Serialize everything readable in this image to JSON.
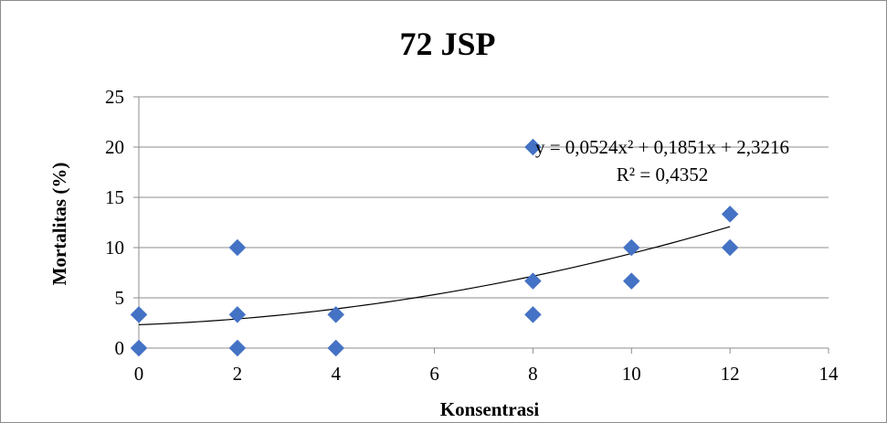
{
  "chart_data": {
    "type": "scatter",
    "title": "72 JSP",
    "xlabel": "Konsentrasi",
    "ylabel": "Mortalitas (%)",
    "xlim": [
      0,
      14
    ],
    "ylim": [
      0,
      25
    ],
    "x_ticks": [
      "0",
      "2",
      "4",
      "6",
      "8",
      "10",
      "12",
      "14"
    ],
    "y_ticks": [
      "0",
      "5",
      "10",
      "15",
      "20",
      "25"
    ],
    "grid": true,
    "marker_color": "#4472C4",
    "points": [
      {
        "x": 0,
        "y": 0
      },
      {
        "x": 0,
        "y": 3.33
      },
      {
        "x": 2,
        "y": 0
      },
      {
        "x": 2,
        "y": 3.33
      },
      {
        "x": 2,
        "y": 10
      },
      {
        "x": 4,
        "y": 0
      },
      {
        "x": 4,
        "y": 3.33
      },
      {
        "x": 8,
        "y": 3.33
      },
      {
        "x": 8,
        "y": 6.67
      },
      {
        "x": 8,
        "y": 20
      },
      {
        "x": 10,
        "y": 6.67
      },
      {
        "x": 10,
        "y": 10
      },
      {
        "x": 12,
        "y": 10
      },
      {
        "x": 12,
        "y": 13.33
      }
    ],
    "trendline": {
      "type": "polynomial",
      "coefficients": [
        0.0524,
        0.1851,
        2.3216
      ],
      "x_range": [
        0,
        12
      ],
      "equation_label": "y = 0,0524x² + 0,1851x + 2,3216",
      "r2_label": "R² = 0,4352"
    }
  }
}
